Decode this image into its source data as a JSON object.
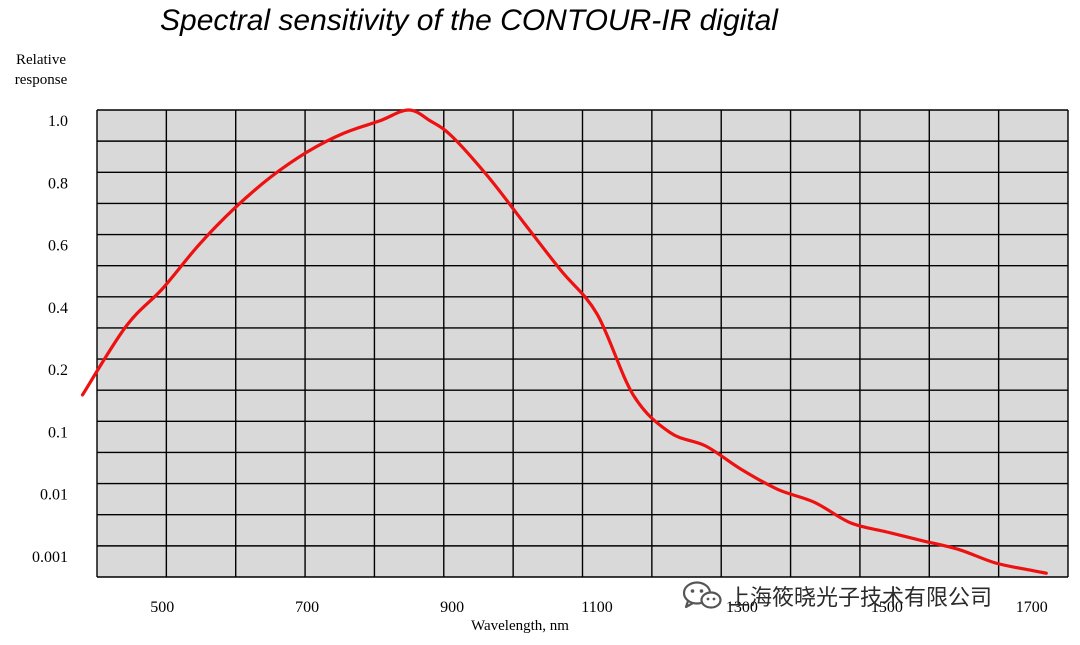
{
  "chart_data": {
    "type": "line",
    "title": "Spectral sensitivity of the CONTOUR-IR digital",
    "ylabel_lines": [
      "Relative",
      "response"
    ],
    "xlabel": "Wavelength, nm",
    "y_ticks": [
      "1.0",
      "0.8",
      "0.6",
      "0.4",
      "0.2",
      "0.1",
      "0.01",
      "0.001"
    ],
    "x_ticks": [
      {
        "value": 500,
        "label": "500"
      },
      {
        "value": 700,
        "label": "700"
      },
      {
        "value": 900,
        "label": "900"
      },
      {
        "value": 1100,
        "label": "1100"
      },
      {
        "value": 1300,
        "label": "1300"
      },
      {
        "value": 1500,
        "label": "1500"
      },
      {
        "value": 1700,
        "label": "1700"
      }
    ],
    "xlim": [
      410,
      1750
    ],
    "grid": true,
    "grid_color": "#000000",
    "plot_background": "#d9d9d9",
    "series": [
      {
        "color": "#ee1111",
        "x": [
          390,
          450,
          500,
          550,
          600,
          650,
          700,
          750,
          800,
          840,
          870,
          900,
          950,
          1000,
          1050,
          1100,
          1150,
          1200,
          1250,
          1300,
          1350,
          1400,
          1450,
          1500,
          1550,
          1600,
          1650,
          1700,
          1720
        ],
        "y": [
          0.16,
          0.34,
          0.46,
          0.6,
          0.72,
          0.82,
          0.9,
          0.96,
          1.0,
          1.02,
          1.0,
          0.95,
          0.82,
          0.67,
          0.52,
          0.38,
          0.16,
          0.1,
          0.06,
          0.025,
          0.012,
          0.0075,
          0.0035,
          0.0025,
          0.0018,
          0.0013,
          0.00085,
          0.0007,
          0.00065
        ]
      }
    ]
  },
  "watermark": {
    "text": "上海筱晓光子技术有限公司",
    "icon": "wechat-logo-icon"
  }
}
